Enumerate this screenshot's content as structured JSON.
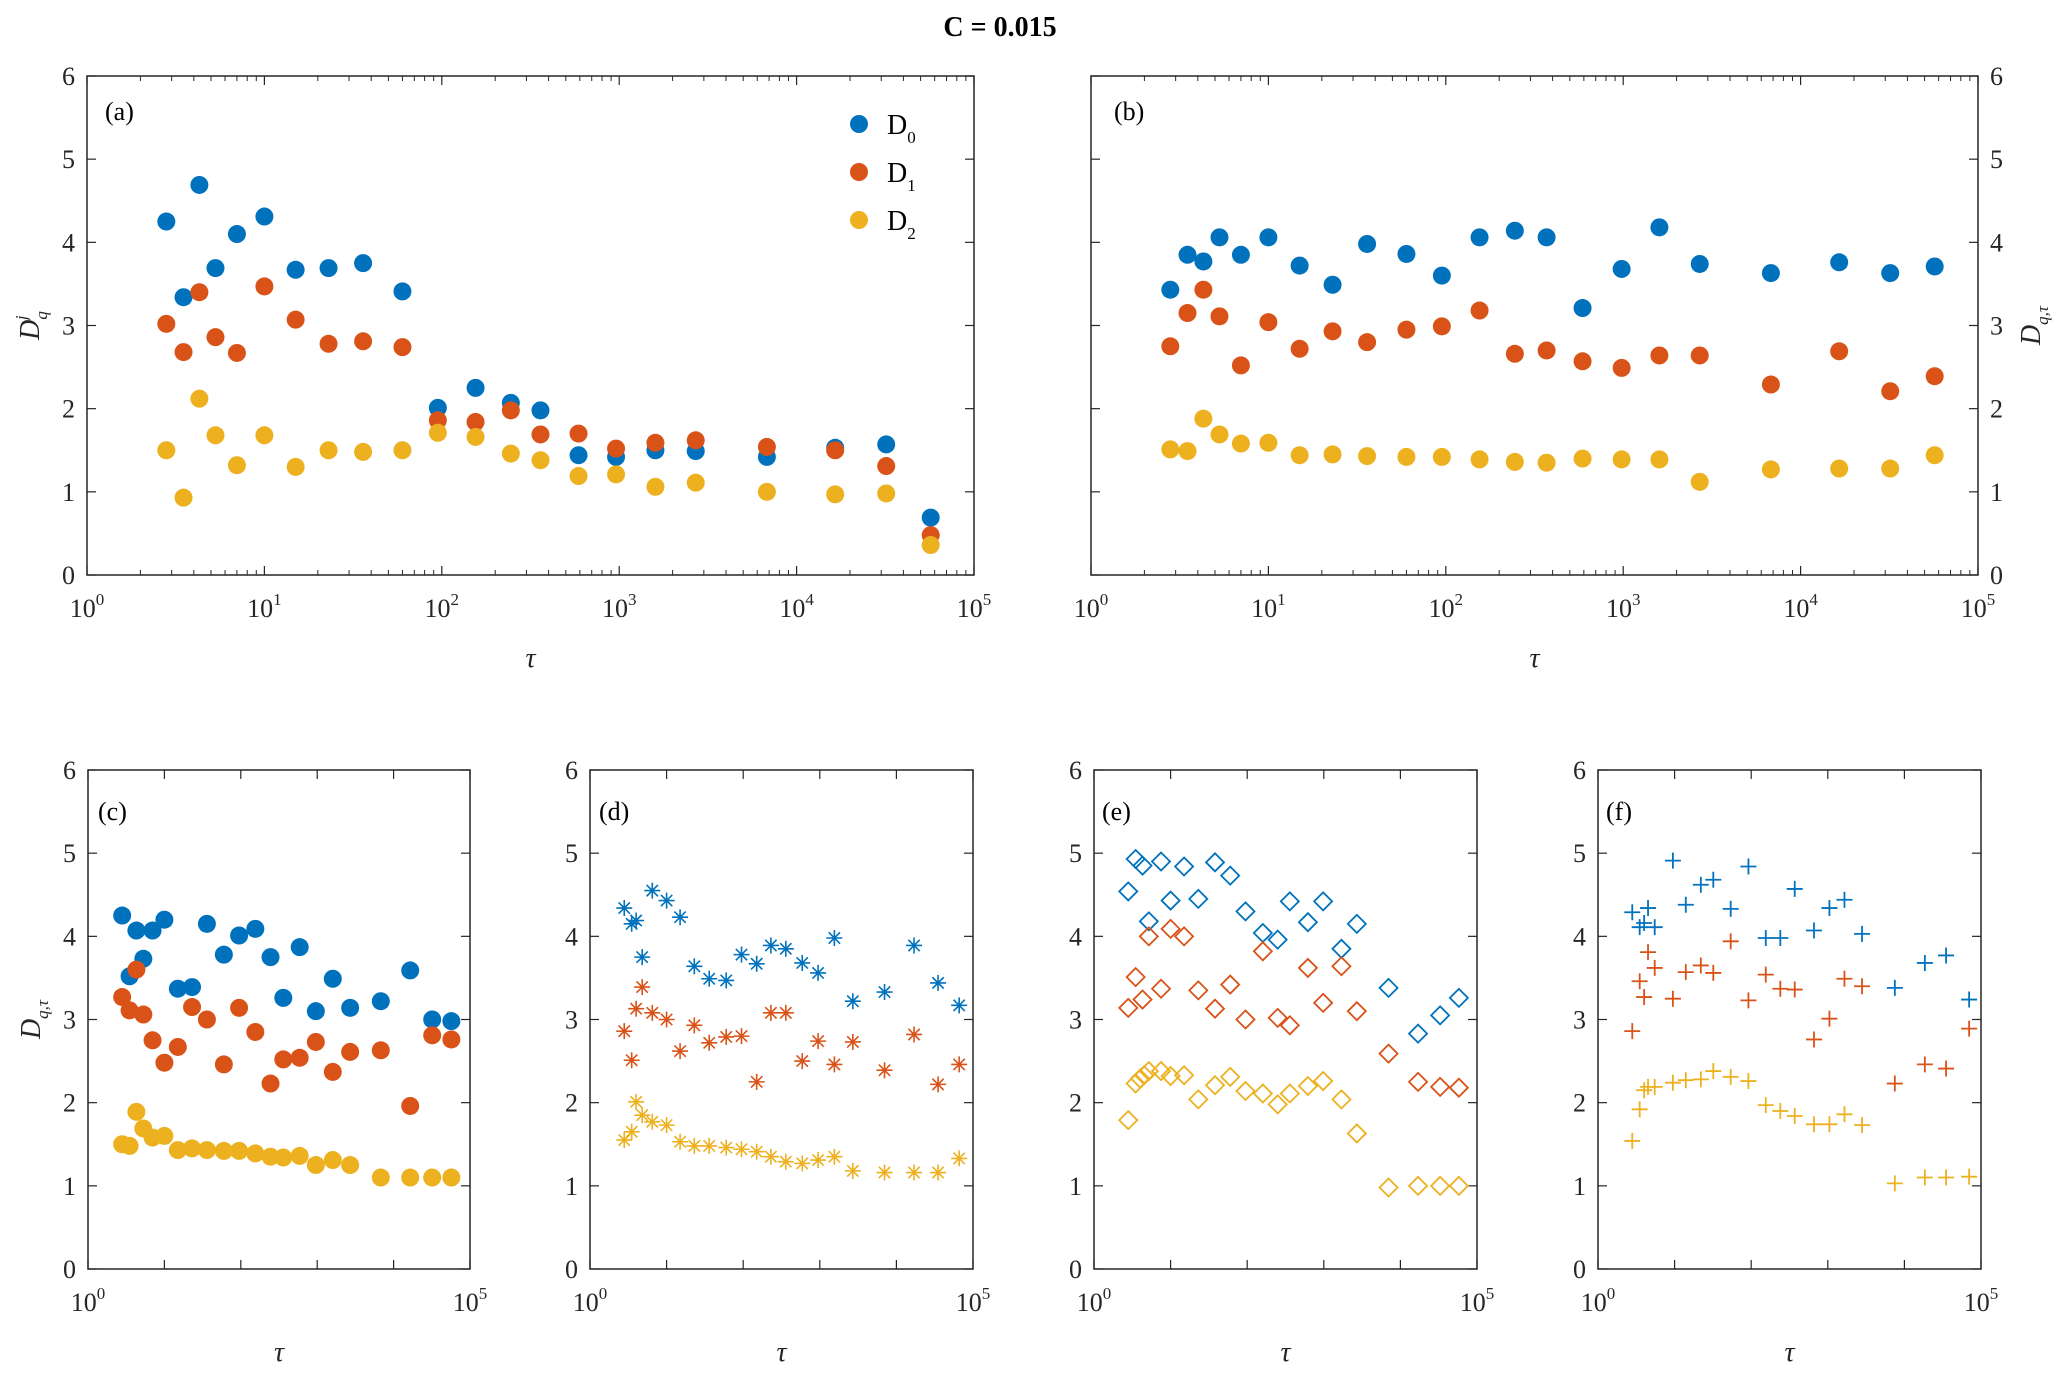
{
  "figure_title": "C = 0.015",
  "chart_data": [
    {
      "id": "a",
      "type": "scatter",
      "panel_label": "(a)",
      "xscale": "log",
      "xlim": [
        1,
        100000
      ],
      "ylim": [
        0,
        6
      ],
      "xlabel": "τ",
      "ylabel": "D_q^j",
      "y_axis_side": "left",
      "marker": "filled-circle",
      "minor_ticks": true,
      "xticks": [
        "10^0",
        "10^1",
        "10^2",
        "10^3",
        "10^4",
        "10^5"
      ],
      "yticks": [
        "0",
        "1",
        "2",
        "3",
        "4",
        "5",
        "6"
      ],
      "legend": {
        "position": "top-right",
        "entries": [
          "D_0",
          "D_1",
          "D_2"
        ]
      },
      "x": [
        2.8,
        3.5,
        4.3,
        5.3,
        7,
        10,
        15,
        23,
        36,
        60,
        95,
        155,
        245,
        360,
        590,
        960,
        1600,
        2700,
        6800,
        16500,
        32000,
        57000
      ],
      "series": [
        {
          "name": "D0",
          "color": "#0072BD",
          "values": [
            4.25,
            3.34,
            4.69,
            3.69,
            4.1,
            4.31,
            3.67,
            3.69,
            3.75,
            3.41,
            2.01,
            2.25,
            2.07,
            1.98,
            1.44,
            1.42,
            1.5,
            1.49,
            1.42,
            1.53,
            1.57,
            0.69
          ]
        },
        {
          "name": "D1",
          "color": "#D95319",
          "values": [
            3.02,
            2.68,
            3.4,
            2.86,
            2.67,
            3.47,
            3.07,
            2.78,
            2.81,
            2.74,
            1.86,
            1.84,
            1.98,
            1.69,
            1.7,
            1.52,
            1.59,
            1.62,
            1.54,
            1.5,
            1.31,
            0.48
          ]
        },
        {
          "name": "D2",
          "color": "#EDB120",
          "values": [
            1.5,
            0.93,
            2.12,
            1.68,
            1.32,
            1.68,
            1.3,
            1.5,
            1.48,
            1.5,
            1.71,
            1.66,
            1.46,
            1.38,
            1.19,
            1.21,
            1.06,
            1.11,
            1.0,
            0.97,
            0.98,
            0.36
          ]
        }
      ]
    },
    {
      "id": "b",
      "type": "scatter",
      "panel_label": "(b)",
      "xscale": "log",
      "xlim": [
        1,
        100000
      ],
      "ylim": [
        0,
        6
      ],
      "xlabel": "τ",
      "ylabel": "D_q,τ",
      "y_axis_side": "right",
      "marker": "filled-circle",
      "minor_ticks": true,
      "xticks": [
        "10^0",
        "10^1",
        "10^2",
        "10^3",
        "10^4",
        "10^5"
      ],
      "yticks": [
        "0",
        "1",
        "2",
        "3",
        "4",
        "5",
        "6"
      ],
      "x": [
        2.8,
        3.5,
        4.3,
        5.3,
        7,
        10,
        15,
        23,
        36,
        60,
        95,
        155,
        245,
        370,
        590,
        980,
        1600,
        2700,
        6800,
        16500,
        32000,
        57000
      ],
      "series": [
        {
          "name": "D0",
          "color": "#0072BD",
          "values": [
            3.43,
            3.85,
            3.77,
            4.06,
            3.85,
            4.06,
            3.72,
            3.49,
            3.98,
            3.86,
            3.6,
            4.06,
            4.14,
            4.06,
            3.21,
            3.68,
            4.18,
            3.74,
            3.63,
            3.76,
            3.63,
            3.71
          ]
        },
        {
          "name": "D1",
          "color": "#D95319",
          "values": [
            2.75,
            3.15,
            3.43,
            3.11,
            2.52,
            3.04,
            2.72,
            2.93,
            2.8,
            2.95,
            2.99,
            3.18,
            2.66,
            2.7,
            2.57,
            2.49,
            2.64,
            2.64,
            2.29,
            2.69,
            2.21,
            2.39
          ]
        },
        {
          "name": "D2",
          "color": "#EDB120",
          "values": [
            1.51,
            1.49,
            1.88,
            1.69,
            1.58,
            1.59,
            1.44,
            1.45,
            1.43,
            1.42,
            1.42,
            1.39,
            1.36,
            1.35,
            1.4,
            1.39,
            1.39,
            1.12,
            1.27,
            1.28,
            1.28,
            1.44
          ]
        }
      ]
    },
    {
      "id": "c",
      "type": "scatter",
      "panel_label": "(c)",
      "xscale": "log",
      "xlim": [
        1,
        100000
      ],
      "ylim": [
        0,
        6
      ],
      "xlabel": "τ",
      "ylabel": "D_q,τ",
      "y_axis_side": "left",
      "marker": "filled-circle",
      "minor_ticks": false,
      "xticks": [
        "10^0",
        "10^5"
      ],
      "yticks": [
        "0",
        "1",
        "2",
        "3",
        "4",
        "5",
        "6"
      ],
      "series": [
        {
          "name": "D0",
          "color": "#0072BD",
          "x": [
            2.8,
            3.5,
            4.3,
            5.3,
            7,
            10,
            15,
            23,
            36,
            60,
            95,
            155,
            245,
            360,
            590,
            960,
            1600,
            2700,
            6800,
            16500,
            32000,
            57000
          ],
          "values": [
            4.25,
            3.52,
            4.07,
            3.73,
            4.07,
            4.2,
            3.37,
            3.39,
            4.15,
            3.78,
            4.01,
            4.09,
            3.75,
            3.26,
            3.87,
            3.1,
            3.49,
            3.14,
            3.22,
            3.59,
            3.0,
            2.98
          ]
        },
        {
          "name": "D1",
          "color": "#D95319",
          "x": [
            2.8,
            3.5,
            4.3,
            5.3,
            7,
            10,
            15,
            23,
            36,
            60,
            95,
            155,
            245,
            360,
            590,
            960,
            1600,
            2700,
            6800,
            16500,
            32000,
            57000
          ],
          "values": [
            3.27,
            3.11,
            3.6,
            3.06,
            2.75,
            2.48,
            2.67,
            3.15,
            3.0,
            2.46,
            3.14,
            2.85,
            2.23,
            2.52,
            2.54,
            2.73,
            2.37,
            2.61,
            2.63,
            1.96,
            2.81,
            2.76
          ]
        },
        {
          "name": "D2",
          "color": "#EDB120",
          "x": [
            2.8,
            3.5,
            4.3,
            5.3,
            7,
            10,
            15,
            23,
            36,
            60,
            95,
            155,
            245,
            360,
            590,
            960,
            1600,
            2700,
            6800,
            16500,
            32000,
            57000
          ],
          "values": [
            1.5,
            1.48,
            1.89,
            1.69,
            1.58,
            1.6,
            1.43,
            1.45,
            1.43,
            1.42,
            1.42,
            1.39,
            1.35,
            1.34,
            1.36,
            1.25,
            1.31,
            1.25,
            1.1,
            1.1,
            1.1,
            1.1
          ]
        }
      ]
    },
    {
      "id": "d",
      "type": "scatter",
      "panel_label": "(d)",
      "xscale": "log",
      "xlim": [
        1,
        100000
      ],
      "ylim": [
        0,
        6
      ],
      "xlabel": "τ",
      "ylabel": "",
      "y_axis_side": "left",
      "marker": "asterisk",
      "minor_ticks": false,
      "xticks": [
        "10^0",
        "10^5"
      ],
      "yticks": [
        "0",
        "1",
        "2",
        "3",
        "4",
        "5",
        "6"
      ],
      "series": [
        {
          "name": "D0",
          "color": "#0072BD",
          "x": [
            2.8,
            3.5,
            4,
            4.8,
            6.5,
            10,
            15,
            23,
            36,
            60,
            95,
            150,
            230,
            360,
            590,
            950,
            1550,
            2700,
            7000,
            17000,
            35000,
            66000
          ],
          "values": [
            4.34,
            4.15,
            4.19,
            3.75,
            4.55,
            4.43,
            4.23,
            3.64,
            3.49,
            3.47,
            3.78,
            3.67,
            3.89,
            3.85,
            3.68,
            3.56,
            3.98,
            3.22,
            3.33,
            3.89,
            3.44,
            3.17
          ]
        },
        {
          "name": "D1",
          "color": "#D95319",
          "x": [
            2.8,
            3.5,
            4,
            4.8,
            6.5,
            10,
            15,
            23,
            36,
            60,
            95,
            150,
            230,
            360,
            590,
            950,
            1550,
            2700,
            7000,
            17000,
            35000,
            66000
          ],
          "values": [
            2.86,
            2.51,
            3.13,
            3.39,
            3.08,
            3.0,
            2.62,
            2.93,
            2.72,
            2.79,
            2.8,
            2.25,
            3.08,
            3.08,
            2.5,
            2.74,
            2.46,
            2.73,
            2.39,
            2.82,
            2.22,
            2.46
          ]
        },
        {
          "name": "D2",
          "color": "#EDB120",
          "x": [
            2.8,
            3.5,
            4,
            4.8,
            6.5,
            10,
            15,
            23,
            36,
            60,
            95,
            150,
            230,
            360,
            590,
            950,
            1550,
            2700,
            7000,
            17000,
            35000,
            66000
          ],
          "values": [
            1.55,
            1.65,
            2.01,
            1.85,
            1.77,
            1.73,
            1.53,
            1.48,
            1.48,
            1.46,
            1.44,
            1.41,
            1.35,
            1.29,
            1.27,
            1.31,
            1.35,
            1.18,
            1.16,
            1.16,
            1.16,
            1.33
          ]
        }
      ]
    },
    {
      "id": "e",
      "type": "scatter",
      "panel_label": "(e)",
      "xscale": "log",
      "xlim": [
        1,
        100000
      ],
      "ylim": [
        0,
        6
      ],
      "xlabel": "τ",
      "ylabel": "",
      "y_axis_side": "left",
      "marker": "open-diamond",
      "minor_ticks": false,
      "xticks": [
        "10^0",
        "10^5"
      ],
      "yticks": [
        "0",
        "1",
        "2",
        "3",
        "4",
        "5",
        "6"
      ],
      "series": [
        {
          "name": "D0",
          "color": "#0072BD",
          "x": [
            2.8,
            3.5,
            4.3,
            5.2,
            7.5,
            10,
            15,
            23,
            38,
            60,
            95,
            160,
            250,
            360,
            620,
            980,
            1700,
            2700,
            7000,
            17000,
            33000,
            58000
          ],
          "values": [
            4.54,
            4.93,
            4.85,
            4.18,
            4.9,
            4.43,
            4.84,
            4.45,
            4.89,
            4.73,
            4.3,
            4.04,
            3.96,
            4.42,
            4.17,
            4.42,
            3.85,
            4.15,
            3.38,
            2.83,
            3.05,
            3.26
          ]
        },
        {
          "name": "D1",
          "color": "#D95319",
          "x": [
            2.8,
            3.5,
            4.3,
            5.2,
            7.5,
            10,
            15,
            23,
            38,
            60,
            95,
            160,
            250,
            360,
            620,
            980,
            1700,
            2700,
            7000,
            17000,
            33000,
            58000
          ],
          "values": [
            3.14,
            3.51,
            3.24,
            4.0,
            3.37,
            4.09,
            4.0,
            3.35,
            3.13,
            3.42,
            3.0,
            3.82,
            3.02,
            2.93,
            3.62,
            3.2,
            3.64,
            3.1,
            2.59,
            2.25,
            2.19,
            2.18
          ]
        },
        {
          "name": "D2",
          "color": "#EDB120",
          "x": [
            2.8,
            3.5,
            4.0,
            4.5,
            5.2,
            7.5,
            10,
            15,
            23,
            38,
            60,
            95,
            160,
            250,
            360,
            620,
            980,
            1700,
            2700,
            7000,
            17000,
            33000,
            58000
          ],
          "values": [
            1.79,
            2.23,
            2.29,
            2.33,
            2.38,
            2.38,
            2.32,
            2.33,
            2.04,
            2.21,
            2.31,
            2.14,
            2.11,
            1.98,
            2.11,
            2.2,
            2.26,
            2.04,
            1.63,
            0.98,
            1.0,
            1.0,
            1.0
          ]
        }
      ]
    },
    {
      "id": "f",
      "type": "scatter",
      "panel_label": "(f)",
      "xscale": "log",
      "xlim": [
        1,
        100000
      ],
      "ylim": [
        0,
        6
      ],
      "xlabel": "τ",
      "ylabel": "",
      "y_axis_side": "left",
      "marker": "plus",
      "minor_ticks": false,
      "xticks": [
        "10^0",
        "10^5"
      ],
      "yticks": [
        "0",
        "1",
        "2",
        "3",
        "4",
        "5",
        "6"
      ],
      "series": [
        {
          "name": "D0",
          "color": "#0072BD",
          "x": [
            2.8,
            3.5,
            4.0,
            4.5,
            5.5,
            9.5,
            14,
            22,
            32,
            54,
            92,
            155,
            240,
            370,
            660,
            1050,
            1650,
            2800,
            7500,
            18500,
            35000,
            70000
          ],
          "values": [
            4.29,
            4.11,
            4.16,
            4.34,
            4.11,
            4.91,
            4.38,
            4.62,
            4.68,
            4.33,
            4.84,
            3.98,
            3.98,
            4.57,
            4.07,
            4.34,
            4.44,
            4.03,
            3.38,
            3.68,
            3.77,
            3.24
          ]
        },
        {
          "name": "D1",
          "color": "#D95319",
          "x": [
            2.8,
            3.5,
            4.0,
            4.5,
            5.5,
            9.5,
            14,
            22,
            32,
            54,
            92,
            155,
            240,
            370,
            660,
            1050,
            1650,
            2800,
            7500,
            18500,
            35000,
            70000
          ],
          "values": [
            2.86,
            3.46,
            3.27,
            3.81,
            3.62,
            3.25,
            3.57,
            3.65,
            3.56,
            3.94,
            3.23,
            3.54,
            3.37,
            3.36,
            2.76,
            3.01,
            3.49,
            3.4,
            2.23,
            2.46,
            2.41,
            2.89
          ]
        },
        {
          "name": "D2",
          "color": "#EDB120",
          "x": [
            2.8,
            3.5,
            4.0,
            4.5,
            5.5,
            9.5,
            14,
            22,
            32,
            54,
            92,
            155,
            240,
            370,
            660,
            1050,
            1650,
            2800,
            7500,
            18500,
            35000,
            70000
          ],
          "values": [
            1.54,
            1.92,
            2.15,
            2.19,
            2.19,
            2.24,
            2.27,
            2.28,
            2.38,
            2.31,
            2.26,
            1.97,
            1.9,
            1.84,
            1.74,
            1.74,
            1.86,
            1.73,
            1.03,
            1.1,
            1.1,
            1.11
          ]
        }
      ]
    }
  ]
}
